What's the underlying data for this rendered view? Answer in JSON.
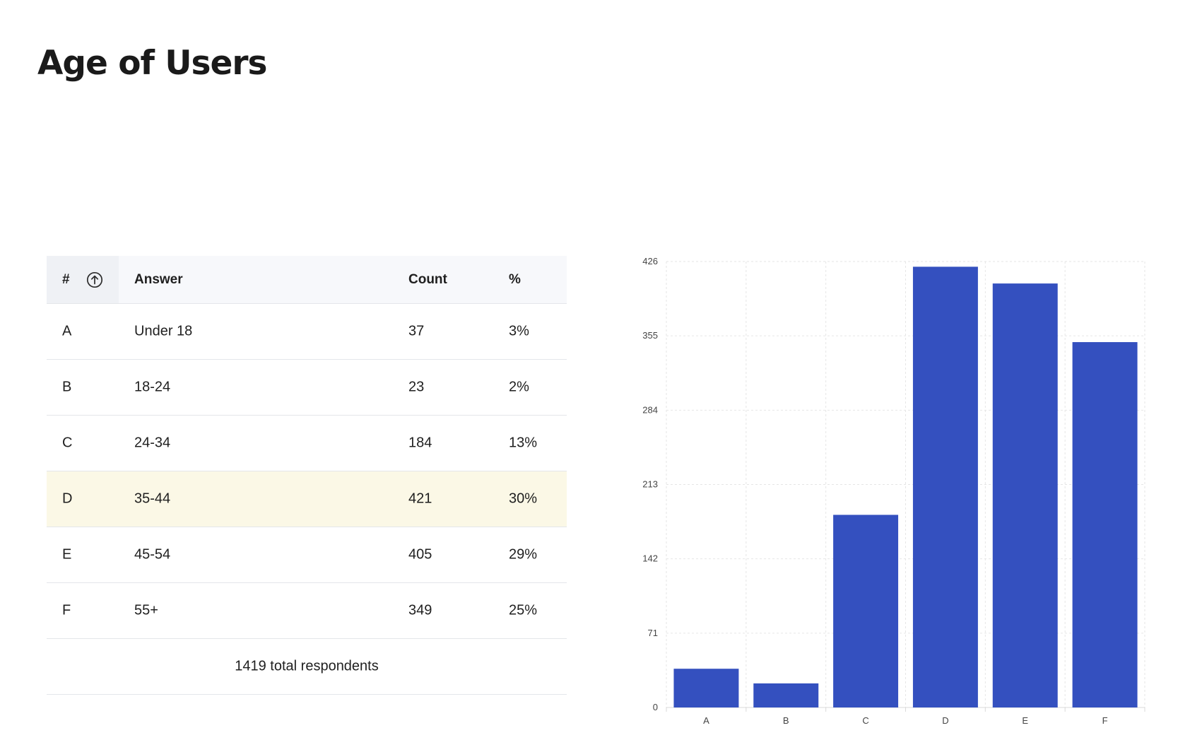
{
  "page": {
    "title": "Age of Users"
  },
  "table": {
    "headers": {
      "hash": "#",
      "answer": "Answer",
      "count": "Count",
      "percent": "%"
    },
    "sort_icon": "arrow-up-circle-icon",
    "rows": [
      {
        "letter": "A",
        "answer": "Under 18",
        "count": "37",
        "percent": "3%"
      },
      {
        "letter": "B",
        "answer": "18-24",
        "count": "23",
        "percent": "2%"
      },
      {
        "letter": "C",
        "answer": "24-34",
        "count": "184",
        "percent": "13%"
      },
      {
        "letter": "D",
        "answer": "35-44",
        "count": "421",
        "percent": "30%",
        "highlighted": true
      },
      {
        "letter": "E",
        "answer": "45-54",
        "count": "405",
        "percent": "29%"
      },
      {
        "letter": "F",
        "answer": "55+",
        "count": "349",
        "percent": "25%"
      }
    ],
    "total": "1419 total respondents",
    "highlight_color": "#fbf8e6"
  },
  "chart_data": {
    "type": "bar",
    "title": "",
    "xlabel": "",
    "ylabel": "",
    "categories": [
      "A",
      "B",
      "C",
      "D",
      "E",
      "F"
    ],
    "values": [
      37,
      23,
      184,
      421,
      405,
      349
    ],
    "yticks": [
      0,
      71,
      142,
      213,
      284,
      355,
      426
    ],
    "ylim": [
      0,
      426
    ],
    "grid": true,
    "legend": "none",
    "bar_color": "#3450bf"
  }
}
